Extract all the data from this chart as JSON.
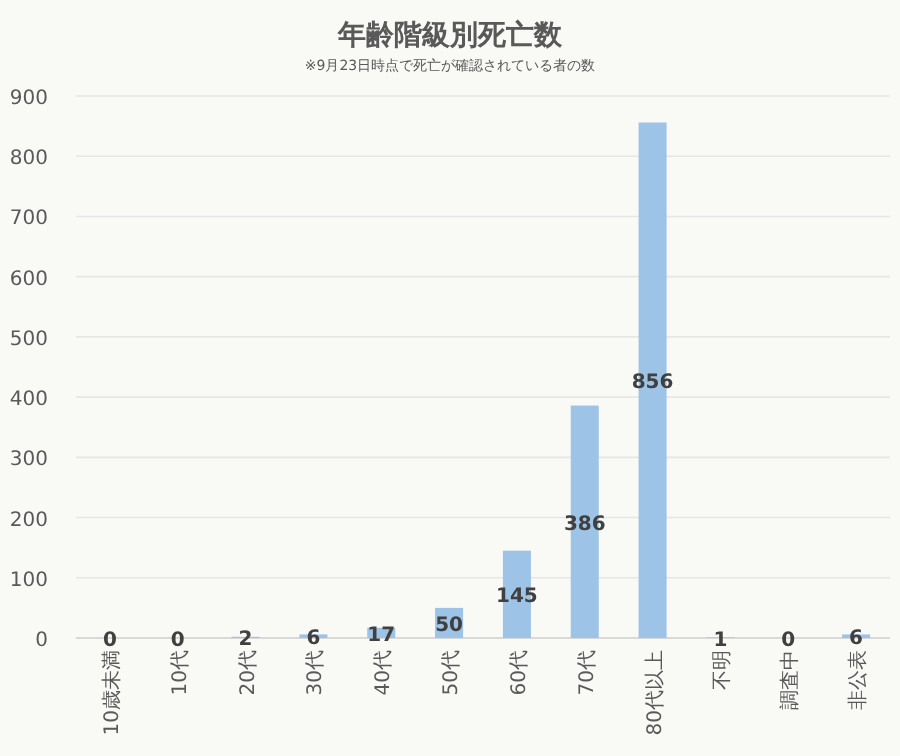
{
  "chart_data": {
    "type": "bar",
    "title": "年齢階級別死亡数",
    "subtitle": "※9月23日時点で死亡が確認されている者の数",
    "categories": [
      "10歳未満",
      "10代",
      "20代",
      "30代",
      "40代",
      "50代",
      "60代",
      "70代",
      "80代以上",
      "不明",
      "調査中",
      "非公表"
    ],
    "values": [
      0,
      0,
      2,
      6,
      17,
      50,
      145,
      386,
      856,
      1,
      0,
      6
    ],
    "color": "#9dc3e6",
    "ylim": [
      0,
      900
    ],
    "yticks": [
      0,
      100,
      200,
      300,
      400,
      500,
      600,
      700,
      800,
      900
    ],
    "grid": "y",
    "data_labels": true
  }
}
